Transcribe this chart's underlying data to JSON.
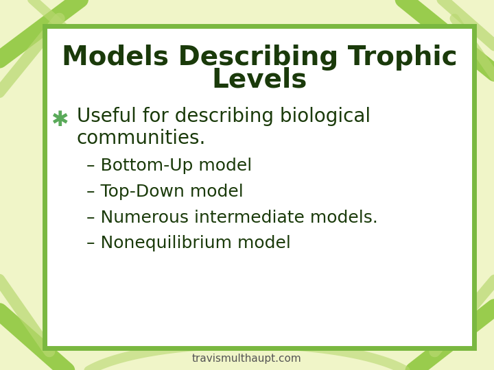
{
  "title_line1": "Models Describing Trophic",
  "title_line2": "Levels",
  "title_color": "#1a3a0a",
  "title_fontsize": 28,
  "bullet_symbol": "✱",
  "bullet_text_line1": "Useful for describing biological",
  "bullet_text_line2": "communities.",
  "bullet_color": "#1a3a0a",
  "bullet_fontsize": 20,
  "bullet_symbol_color": "#5aaa5a",
  "sub_items": [
    "– Bottom-Up model",
    "– Top-Down model",
    "– Numerous intermediate models.",
    "– Nonequilibrium model"
  ],
  "sub_fontsize": 18,
  "sub_color": "#1a3a0a",
  "footer": "travismulthaupt.com",
  "footer_fontsize": 11,
  "footer_color": "#555555",
  "bg_outer": "#f0f5c8",
  "bg_inner": "#ffffff",
  "border_color": "#7ab840",
  "border_linewidth": 5,
  "leaf_color": "#90c840",
  "leaf_color2": "#b8d870"
}
